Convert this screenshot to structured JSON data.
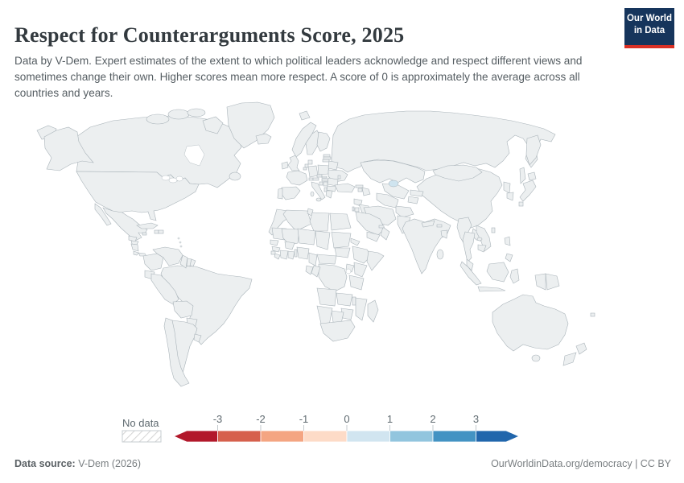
{
  "header": {
    "title": "Respect for Counterarguments Score, 2025",
    "subtitle": "Data by V-Dem. Expert estimates of the extent to which political leaders acknowledge and respect different views and sometimes change their own. Higher scores mean more respect. A score of 0 is approximately the average across all countries and years.",
    "logo": {
      "line1": "Our World",
      "line2": "in Data",
      "bg_color": "#16355c",
      "accent_color": "#d93025"
    }
  },
  "legend": {
    "no_data_label": "No data",
    "ticks": [
      "-3",
      "-2",
      "-1",
      "0",
      "1",
      "2",
      "3"
    ],
    "colors": [
      "#b2182b",
      "#d6604d",
      "#f4a582",
      "#fddbc7",
      "#d1e5f0",
      "#92c5de",
      "#4393c3",
      "#2166ac"
    ],
    "bins": [
      "< -3",
      "-3 to -2",
      "-2 to -1",
      "-1 to 0",
      "0 to 1",
      "1 to 2",
      "2 to 3",
      "> 3"
    ]
  },
  "footer": {
    "source_label": "Data source:",
    "source_value": " V-Dem (2026)",
    "right": "OurWorldinData.org/democracy | CC BY"
  },
  "map": {
    "stroke_color": "#a9b3b9",
    "no_data_pattern": "diagonal-hatch",
    "countries": {
      "united_states": "#d1e5f0",
      "canada": "#d1e5f0",
      "greenland": "nodata",
      "mexico": "#fddbc7",
      "guatemala": "#fddbc7",
      "honduras": "#d1e5f0",
      "nicaragua": "#b2182b",
      "costa_rica": "#4393c3",
      "panama": "#4393c3",
      "cuba": "#f4a582",
      "jamaica": "#4393c3",
      "haiti": "#d1e5f0",
      "dominican_republic": "#4393c3",
      "colombia": "#d1e5f0",
      "venezuela": "#f4a582",
      "guyana": "#fddbc7",
      "suriname": "nodata",
      "french_guiana": "nodata",
      "brazil": "#d1e5f0",
      "ecuador": "#d1e5f0",
      "peru": "#d1e5f0",
      "bolivia": "#fddbc7",
      "paraguay": "#d1e5f0",
      "chile": "#92c5de",
      "argentina": "#d1e5f0",
      "uruguay": "#d1e5f0",
      "iceland": "#92c5de",
      "norway": "#2166ac",
      "svalbard": "#2166ac",
      "sweden": "#4393c3",
      "finland": "#4393c3",
      "denmark": "#4393c3",
      "united_kingdom": "#4393c3",
      "ireland": "#92c5de",
      "france": "#d1e5f0",
      "spain": "#d1e5f0",
      "portugal": "#4393c3",
      "germany": "#4393c3",
      "netherlands": "#92c5de",
      "belgium": "#4393c3",
      "switzerland": "#d1e5f0",
      "austria": "#fddbc7",
      "czechia": "#fddbc7",
      "slovakia": "#fddbc7",
      "hungary": "#fddbc7",
      "poland": "#d1e5f0",
      "estonia": "#4393c3",
      "latvia": "#d1e5f0",
      "lithuania": "#92c5de",
      "belarus": "#f4a582",
      "ukraine": "#d1e5f0",
      "moldova": "#d1e5f0",
      "romania": "#fddbc7",
      "bulgaria": "#fddbc7",
      "serbia": "#fddbc7",
      "croatia": "#4393c3",
      "albania": "#92c5de",
      "greece": "#4393c3",
      "italy": "#92c5de",
      "sicily": "#92c5de",
      "sardinia": "#92c5de",
      "russia": "#f4a582",
      "turkey": "#fddbc7",
      "georgia": "#92c5de",
      "armenia": "#4393c3",
      "azerbaijan": "#d6604d",
      "kazakhstan": "#fddbc7",
      "uzbekistan": "#d6604d",
      "turkmenistan": "#d6604d",
      "tajikistan": "#b2182b",
      "kyrgyzstan": "#fddbc7",
      "iran": "#fddbc7",
      "iraq": "#f4a582",
      "syria": "#f4a582",
      "israel": "#92c5de",
      "jordan": "#fddbc7",
      "saudi_arabia": "#f4a582",
      "yemen": "#ec8f6e",
      "oman": "#f4a582",
      "united_arab_emirates": "#f4a582",
      "afghanistan": "#fddbc7",
      "pakistan": "#fddbc7",
      "india": "#fddbc7",
      "nepal": "#2166ac",
      "bhutan": "#4393c3",
      "bangladesh": "#f4a582",
      "sri_lanka": "#4393c3",
      "myanmar": "#f4a582",
      "thailand": "#d1e5f0",
      "laos": "#d1e5f0",
      "vietnam": "#f4a582",
      "cambodia": "#f4a582",
      "malaysia": "#d1e5f0",
      "indonesia": "#d1e5f0",
      "philippines": "#d1e5f0",
      "taiwan": "#d1e5f0",
      "china": "#d6604d",
      "hainan": "#d6604d",
      "mongolia": "#92c5de",
      "north_korea": "#a81726",
      "south_korea": "#d1e5f0",
      "japan": "#2166ac",
      "papua_new_guinea": "#d1e5f0",
      "west_papua": "#d1e5f0",
      "australia": "#92c5de",
      "tasmania": "#92c5de",
      "new_zealand": "#fddbc7",
      "fiji": "nodata",
      "morocco": "#d1e5f0",
      "algeria": "#fddbc7",
      "tunisia": "#4393c3",
      "libya": "#fddbc7",
      "egypt": "#fddbc7",
      "mauritania": "#d1e5f0",
      "mali": "#d1e5f0",
      "niger": "#92c5de",
      "chad": "#fddbc7",
      "sudan": "#fddbc7",
      "south_sudan": "#f4a582",
      "eritrea": "#f4a582",
      "ethiopia": "#d1e5f0",
      "somalia": "#4393c3",
      "kenya": "#4393c3",
      "uganda": "#f4a582",
      "tanzania": "#4393c3",
      "senegal": "#92c5de",
      "guinea": "#4393c3",
      "sierra_leone": "#2166ac",
      "liberia": "#2166ac",
      "ivory_coast": "#fddbc7",
      "burkina_faso": "#d6604d",
      "ghana": "#4393c3",
      "benin": "#fddbc7",
      "nigeria": "#fddbc7",
      "cameroon": "#fddbc7",
      "central_african_republic": "#fddbc7",
      "congo": "#f4a582",
      "gabon": "#d1e5f0",
      "dr_congo": "#d1e5f0",
      "angola": "#fddbc7",
      "zambia": "#d1e5f0",
      "malawi": "#92c5de",
      "mozambique": "#d1e5f0",
      "zimbabwe": "#fddbc7",
      "botswana": "#d1e5f0",
      "namibia": "#d1e5f0",
      "south_africa": "#4393c3",
      "madagascar": "#fddbc7"
    }
  }
}
